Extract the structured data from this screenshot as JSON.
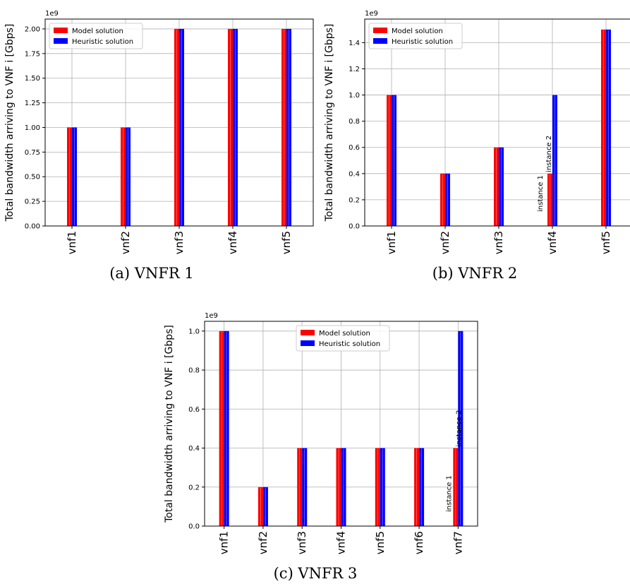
{
  "chart_data": [
    {
      "type": "bar",
      "caption": "(a) VNFR 1",
      "ylabel": "Total bandwidth arriving to VNF i [Gbps]",
      "offset_label": "1e9",
      "categories": [
        "vnf1",
        "vnf2",
        "vnf3",
        "vnf4",
        "vnf5"
      ],
      "yticks": [
        "0.00",
        "0.25",
        "0.50",
        "0.75",
        "1.00",
        "1.25",
        "1.50",
        "1.75",
        "2.00"
      ],
      "ylim": [
        0,
        2.1
      ],
      "grid": true,
      "legend_loc": "upper-left",
      "series": [
        {
          "name": "Model solution",
          "color": "#ff0000",
          "values": [
            1.0,
            1.0,
            2.0,
            2.0,
            2.0
          ]
        },
        {
          "name": "Heuristic solution",
          "color": "#0000ff",
          "values": [
            1.0,
            1.0,
            2.0,
            2.0,
            2.0
          ]
        }
      ],
      "annotations": []
    },
    {
      "type": "bar",
      "caption": "(b) VNFR 2",
      "ylabel": "Total bandwidth arriving to VNF i [Gbps]",
      "offset_label": "1e9",
      "categories": [
        "vnf1",
        "vnf2",
        "vnf3",
        "vnf4",
        "vnf5"
      ],
      "yticks": [
        "0.0",
        "0.2",
        "0.4",
        "0.6",
        "0.8",
        "1.0",
        "1.2",
        "1.4"
      ],
      "ylim": [
        0,
        1.58
      ],
      "grid": true,
      "legend_loc": "upper-left",
      "series": [
        {
          "name": "Model solution",
          "color": "#ff0000",
          "values": [
            1.0,
            0.4,
            0.6,
            0.4,
            1.5
          ]
        },
        {
          "name": "Heuristic solution",
          "color": "#0000ff",
          "values": [
            1.0,
            0.4,
            0.6,
            1.0,
            1.5
          ]
        }
      ],
      "annotations": [
        {
          "category": "vnf4",
          "text": "instance 1"
        },
        {
          "category": "vnf4",
          "text": "instance 2"
        }
      ]
    },
    {
      "type": "bar",
      "caption": "(c) VNFR 3",
      "ylabel": "Total bandwidth arriving to VNF i  [Gbps]",
      "offset_label": "1e9",
      "categories": [
        "vnf1",
        "vnf2",
        "vnf3",
        "vnf4",
        "vnf5",
        "vnf6",
        "vnf7"
      ],
      "yticks": [
        "0.0",
        "0.2",
        "0.4",
        "0.6",
        "0.8",
        "1.0"
      ],
      "ylim": [
        0,
        1.05
      ],
      "grid": true,
      "legend_loc": "upper-center",
      "series": [
        {
          "name": "Model solution",
          "color": "#ff0000",
          "values": [
            1.0,
            0.2,
            0.4,
            0.4,
            0.4,
            0.4,
            0.4
          ]
        },
        {
          "name": "Heuristic solution",
          "color": "#0000ff",
          "values": [
            1.0,
            0.2,
            0.4,
            0.4,
            0.4,
            0.4,
            1.0
          ]
        }
      ],
      "annotations": [
        {
          "category": "vnf7",
          "text": "instance 1"
        },
        {
          "category": "vnf7",
          "text": "instance 2"
        }
      ]
    }
  ]
}
